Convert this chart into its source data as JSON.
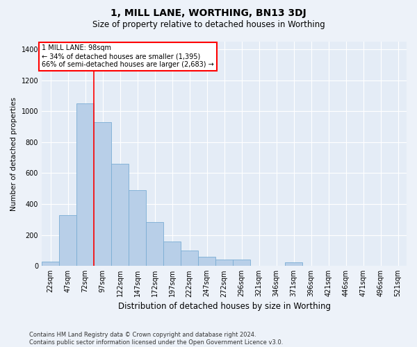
{
  "title": "1, MILL LANE, WORTHING, BN13 3DJ",
  "subtitle": "Size of property relative to detached houses in Worthing",
  "xlabel": "Distribution of detached houses by size in Worthing",
  "ylabel": "Number of detached properties",
  "categories": [
    "22sqm",
    "47sqm",
    "72sqm",
    "97sqm",
    "122sqm",
    "147sqm",
    "172sqm",
    "197sqm",
    "222sqm",
    "247sqm",
    "272sqm",
    "296sqm",
    "321sqm",
    "346sqm",
    "371sqm",
    "396sqm",
    "421sqm",
    "446sqm",
    "471sqm",
    "496sqm",
    "521sqm"
  ],
  "values": [
    30,
    330,
    1050,
    930,
    660,
    490,
    285,
    160,
    100,
    60,
    40,
    40,
    0,
    0,
    25,
    0,
    0,
    0,
    0,
    0,
    0
  ],
  "bar_color": "#b8cfe8",
  "bar_edge_color": "#7aadd4",
  "vline_bar_idx": 3,
  "annotation_text_line1": "1 MILL LANE: 98sqm",
  "annotation_text_line2": "← 34% of detached houses are smaller (1,395)",
  "annotation_text_line3": "66% of semi-detached houses are larger (2,683) →",
  "ylim_max": 1450,
  "yticks": [
    0,
    200,
    400,
    600,
    800,
    1000,
    1200,
    1400
  ],
  "footnote_line1": "Contains HM Land Registry data © Crown copyright and database right 2024.",
  "footnote_line2": "Contains public sector information licensed under the Open Government Licence v3.0.",
  "bg_color": "#edf2f9",
  "plot_bg_color": "#e4ecf6",
  "grid_color": "#ffffff",
  "title_fontsize": 10,
  "subtitle_fontsize": 8.5,
  "ylabel_fontsize": 7.5,
  "xlabel_fontsize": 8.5,
  "tick_fontsize": 7,
  "annot_fontsize": 7,
  "footnote_fontsize": 6
}
